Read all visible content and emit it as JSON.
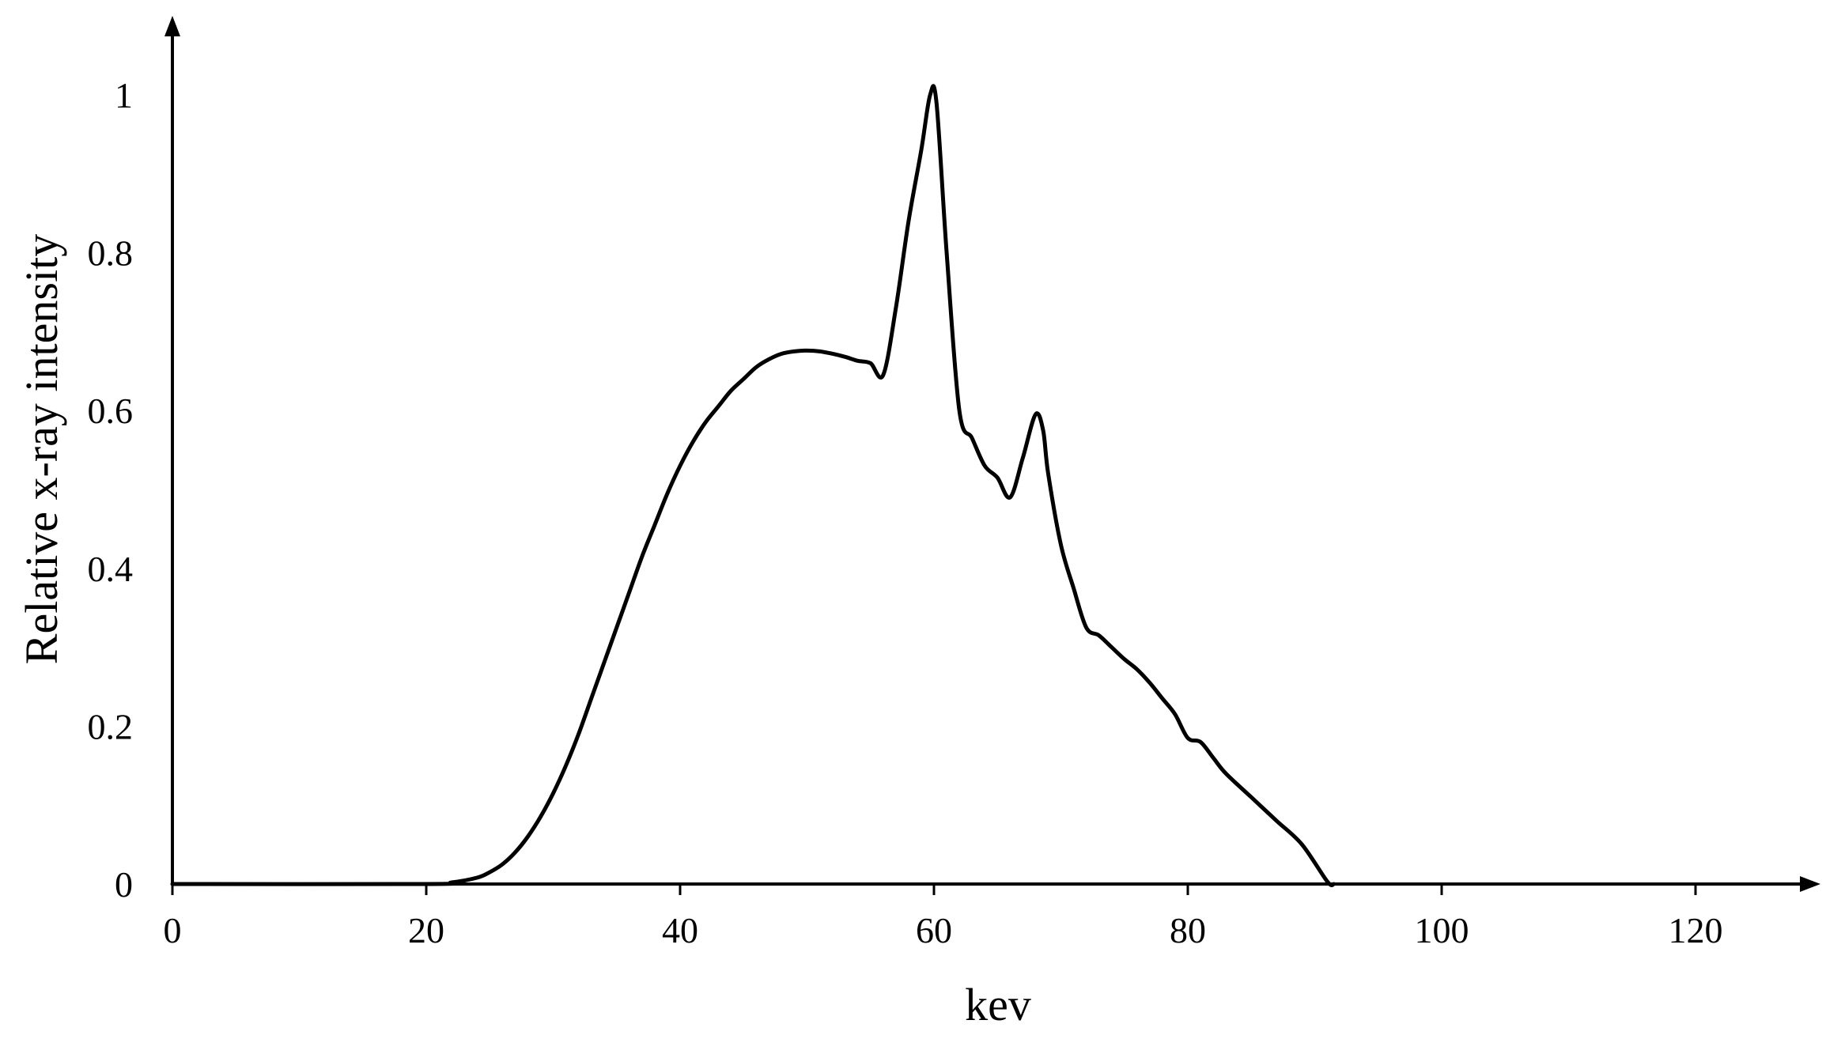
{
  "chart_data": {
    "type": "line",
    "title": "",
    "xlabel": "kev",
    "ylabel": "Relative x-ray intensity",
    "xlim": [
      0,
      128
    ],
    "ylim": [
      0,
      1.08
    ],
    "grid": false,
    "x_ticks": [
      0,
      20,
      40,
      60,
      80,
      100,
      120
    ],
    "y_ticks": [
      0,
      0.2,
      0.4,
      0.6,
      0.8,
      1
    ],
    "series": [
      {
        "color": "#000000",
        "points": [
          [
            0,
            0
          ],
          [
            20,
            0
          ],
          [
            22,
            0.002
          ],
          [
            24,
            0.008
          ],
          [
            25,
            0.015
          ],
          [
            26,
            0.025
          ],
          [
            27,
            0.04
          ],
          [
            28,
            0.06
          ],
          [
            29,
            0.085
          ],
          [
            30,
            0.115
          ],
          [
            31,
            0.15
          ],
          [
            32,
            0.19
          ],
          [
            33,
            0.235
          ],
          [
            34,
            0.28
          ],
          [
            35,
            0.325
          ],
          [
            36,
            0.37
          ],
          [
            37,
            0.415
          ],
          [
            38,
            0.455
          ],
          [
            39,
            0.495
          ],
          [
            40,
            0.53
          ],
          [
            41,
            0.56
          ],
          [
            42,
            0.585
          ],
          [
            43,
            0.605
          ],
          [
            44,
            0.625
          ],
          [
            45,
            0.64
          ],
          [
            46,
            0.655
          ],
          [
            47,
            0.665
          ],
          [
            48,
            0.672
          ],
          [
            49,
            0.675
          ],
          [
            50,
            0.676
          ],
          [
            51,
            0.675
          ],
          [
            52,
            0.672
          ],
          [
            53,
            0.668
          ],
          [
            54,
            0.663
          ],
          [
            55,
            0.66
          ],
          [
            56,
            0.645
          ],
          [
            57,
            0.73
          ],
          [
            58,
            0.84
          ],
          [
            59,
            0.93
          ],
          [
            59.7,
            1.0
          ],
          [
            60.2,
            0.99
          ],
          [
            61,
            0.8
          ],
          [
            62,
            0.6
          ],
          [
            63,
            0.565
          ],
          [
            64,
            0.53
          ],
          [
            65,
            0.515
          ],
          [
            66,
            0.49
          ],
          [
            67,
            0.54
          ],
          [
            68,
            0.595
          ],
          [
            68.6,
            0.575
          ],
          [
            69,
            0.52
          ],
          [
            70,
            0.43
          ],
          [
            71,
            0.375
          ],
          [
            72,
            0.325
          ],
          [
            73,
            0.315
          ],
          [
            74,
            0.3
          ],
          [
            75,
            0.285
          ],
          [
            76,
            0.272
          ],
          [
            77,
            0.255
          ],
          [
            78,
            0.235
          ],
          [
            79,
            0.215
          ],
          [
            80,
            0.185
          ],
          [
            81,
            0.18
          ],
          [
            82,
            0.16
          ],
          [
            83,
            0.14
          ],
          [
            85,
            0.11
          ],
          [
            87,
            0.08
          ],
          [
            89,
            0.05
          ],
          [
            91,
            0.003
          ],
          [
            91.5,
            0
          ]
        ]
      }
    ]
  }
}
